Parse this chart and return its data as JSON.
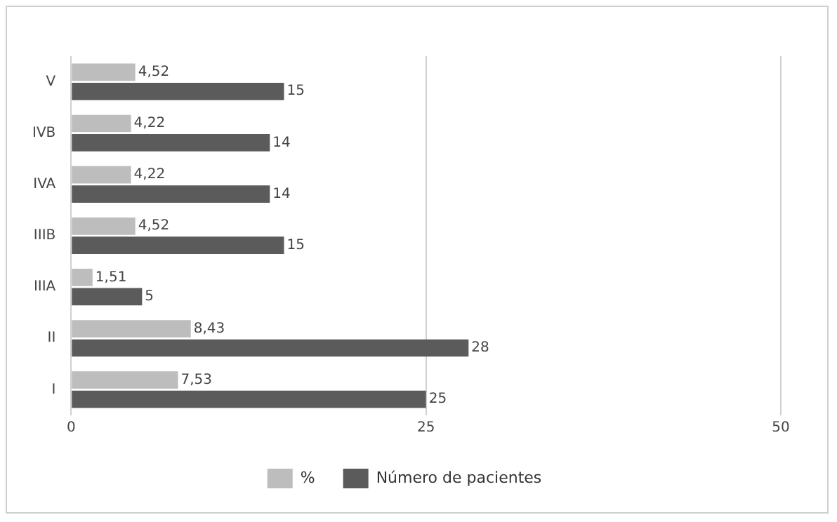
{
  "chart_data": {
    "type": "bar",
    "orientation": "horizontal",
    "categories": [
      "V",
      "IVB",
      "IVA",
      "IIIB",
      "IIIA",
      "II",
      "I"
    ],
    "series": [
      {
        "name": "%",
        "color": "#bdbdbd",
        "values": [
          4.52,
          4.22,
          4.22,
          4.52,
          1.51,
          8.43,
          7.53
        ],
        "value_labels": [
          "4,52",
          "4,22",
          "4,22",
          "4,52",
          "1,51",
          "8,43",
          "7,53"
        ]
      },
      {
        "name": "Número de pacientes",
        "color": "#5b5b5b",
        "values": [
          15,
          14,
          14,
          15,
          5,
          28,
          25
        ],
        "value_labels": [
          "15",
          "14",
          "14",
          "15",
          "5",
          "28",
          "25"
        ]
      }
    ],
    "xlim": [
      0,
      50
    ],
    "xticks": [
      0,
      25,
      50
    ],
    "grid": "x",
    "legend": "bottom"
  }
}
